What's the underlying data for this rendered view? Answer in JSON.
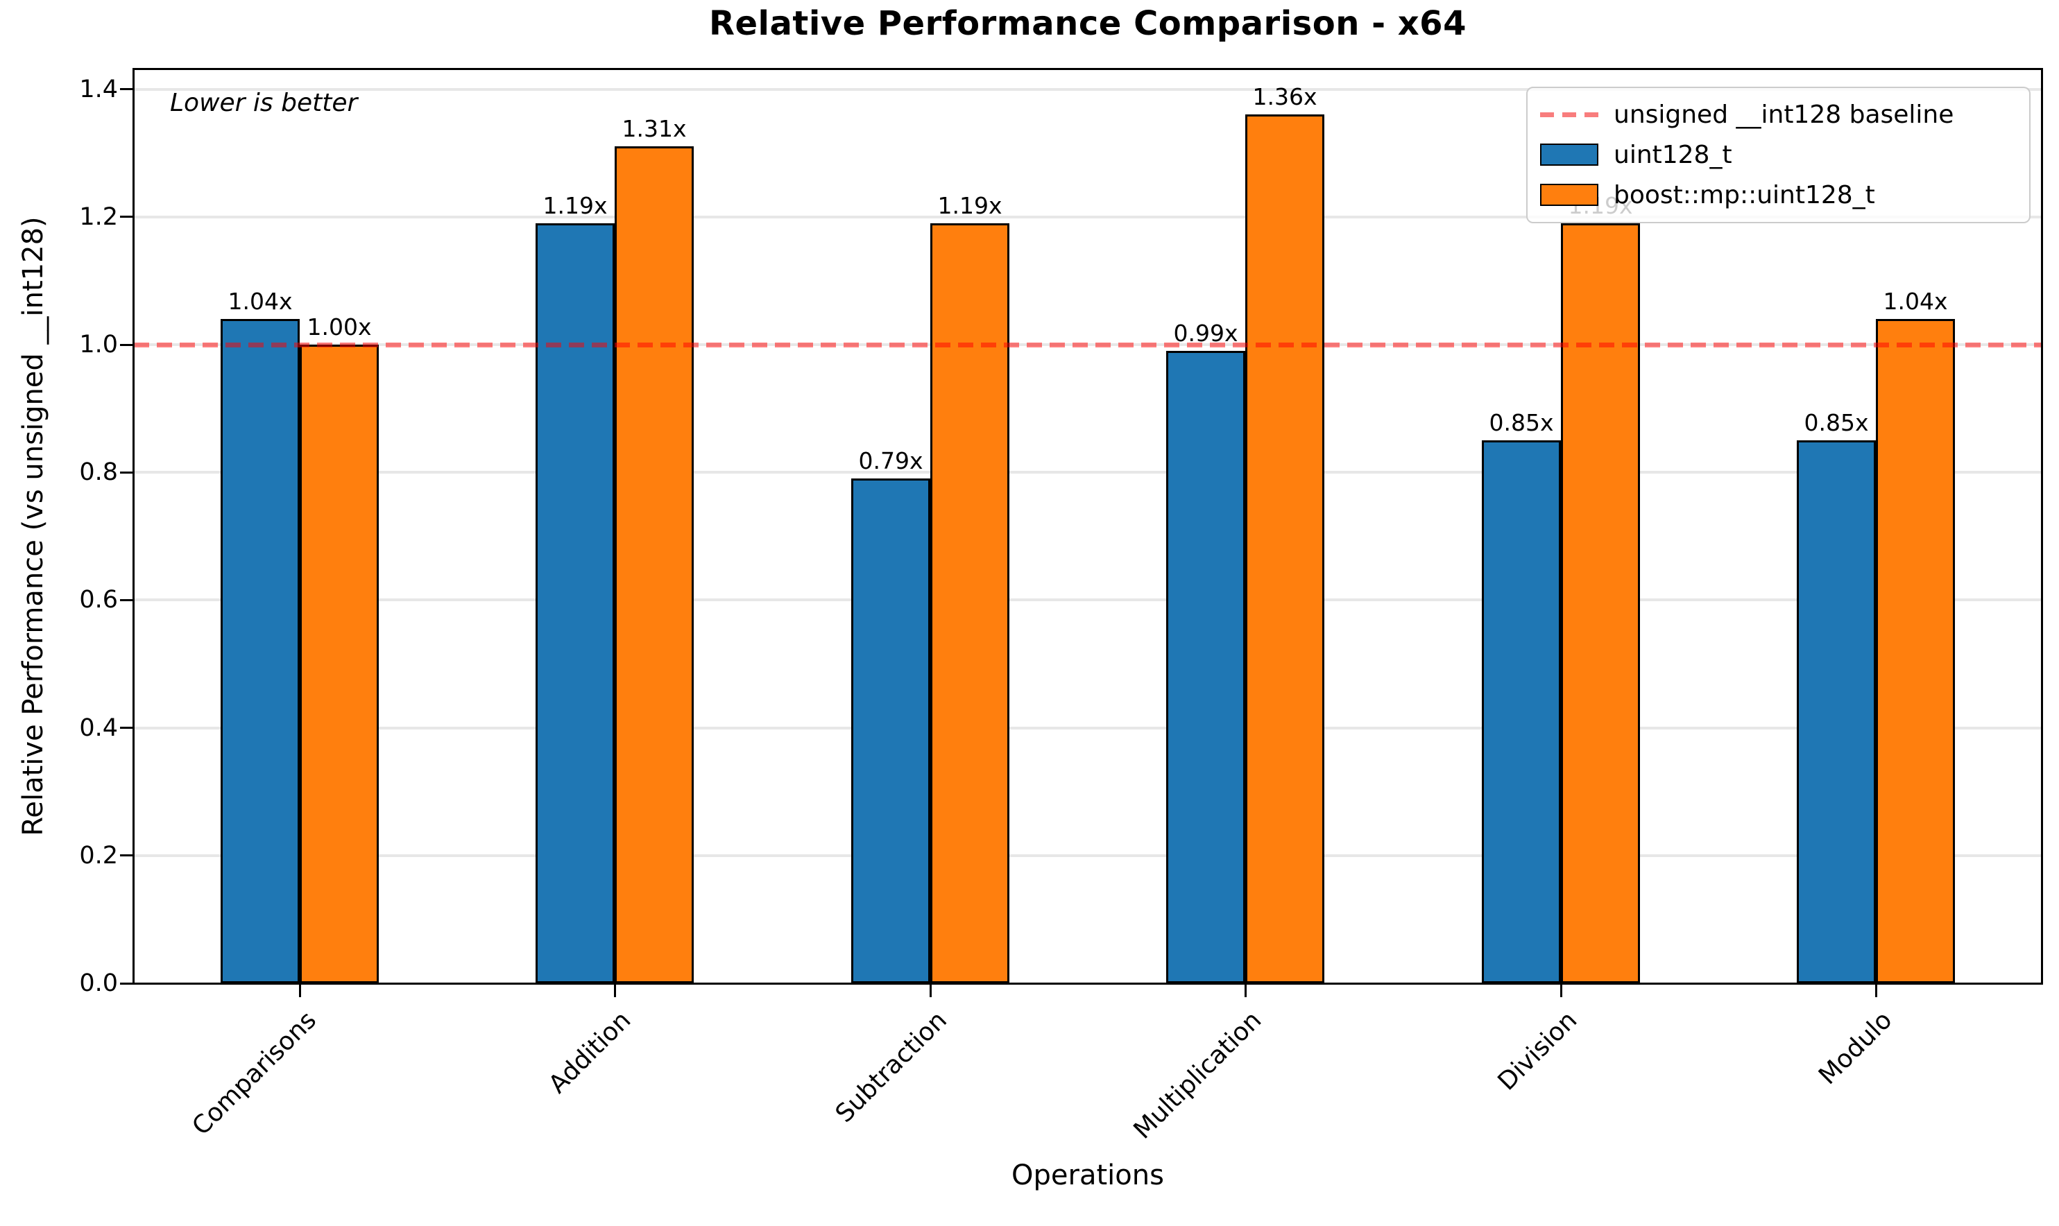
{
  "chart_data": {
    "type": "bar",
    "title": "Relative Performance Comparison - x64",
    "xlabel": "Operations",
    "ylabel": "Relative Performance (vs unsigned __int128)",
    "annotation": "Lower is better",
    "categories": [
      "Comparisons",
      "Addition",
      "Subtraction",
      "Multiplication",
      "Division",
      "Modulo"
    ],
    "series": [
      {
        "name": "uint128_t",
        "color": "#1f77b4",
        "values": [
          1.04,
          1.19,
          0.79,
          0.99,
          0.85,
          0.85
        ],
        "labels": [
          "1.04x",
          "1.19x",
          "0.79x",
          "0.99x",
          "0.85x",
          "0.85x"
        ]
      },
      {
        "name": "boost::mp::uint128_t",
        "color": "#ff7f0e",
        "values": [
          1.0,
          1.31,
          1.19,
          1.36,
          1.19,
          1.04
        ],
        "labels": [
          "1.00x",
          "1.31x",
          "1.19x",
          "1.36x",
          "1.19x",
          "1.04x"
        ]
      }
    ],
    "baseline": {
      "value": 1.0,
      "label": "unsigned __int128 baseline",
      "color": "#f87d7d",
      "alpha_color": "rgba(255,0,0,0.5)"
    },
    "yticks": [
      "0.0",
      "0.2",
      "0.4",
      "0.6",
      "0.8",
      "1.0",
      "1.2",
      "1.4"
    ],
    "ylim": [
      0,
      1.43
    ],
    "grid": true,
    "grid_color": "#e7e7e7",
    "legend_position": "upper right",
    "bar_edge_color": "#000000"
  }
}
